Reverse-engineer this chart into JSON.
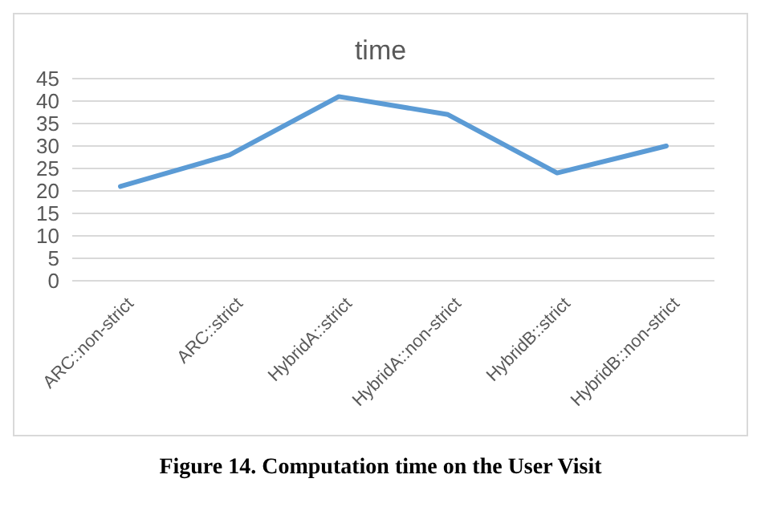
{
  "chart_data": {
    "type": "line",
    "title": "time",
    "categories": [
      "ARC::non-strict",
      "ARC::strict",
      "HybridA::strict",
      "HybridA::non-strict",
      "HybridB::strict",
      "HybridB::non-strict"
    ],
    "series": [
      {
        "color": "#5b9bd5",
        "values": [
          21,
          28,
          41,
          37,
          24,
          30
        ]
      }
    ],
    "ylim": [
      0,
      45
    ],
    "yticks": [
      0,
      5,
      10,
      15,
      20,
      25,
      30,
      35,
      40,
      45
    ],
    "grid": "y",
    "legend": false,
    "marker": "none",
    "line_style": "solid",
    "annotations": [
      "Figure 14. Computation time on the User Visit"
    ]
  }
}
